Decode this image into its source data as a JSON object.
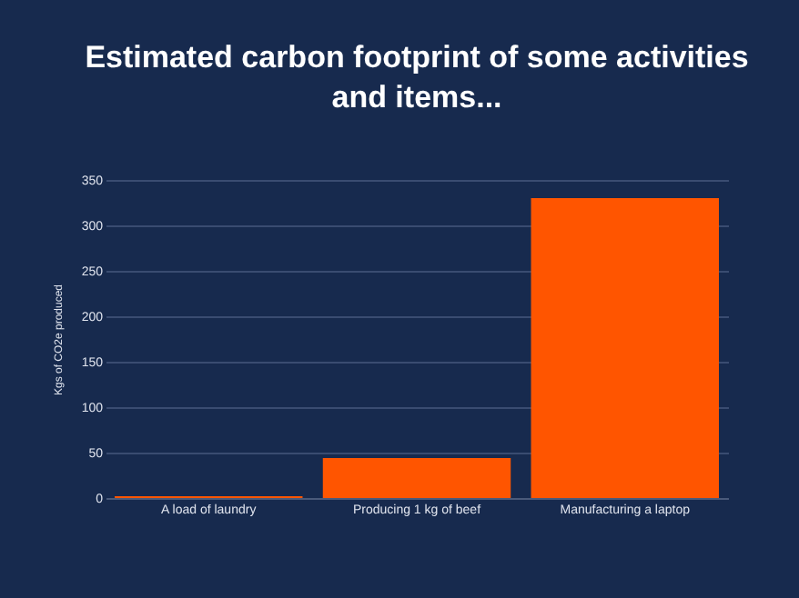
{
  "chart_data": {
    "type": "bar",
    "title": [
      "Estimated carbon footprint of some activities",
      "and items..."
    ],
    "ylabel": "Kgs of CO2e produced",
    "categories": [
      "A load of laundry",
      "Producing 1 kg of beef",
      "Manufacturing a laptop"
    ],
    "values": [
      2,
      44,
      330
    ],
    "color": "#ff5500",
    "ylim": [
      0,
      350
    ],
    "yticks": [
      0,
      50,
      100,
      150,
      200,
      250,
      300,
      350
    ],
    "grid": "y"
  }
}
